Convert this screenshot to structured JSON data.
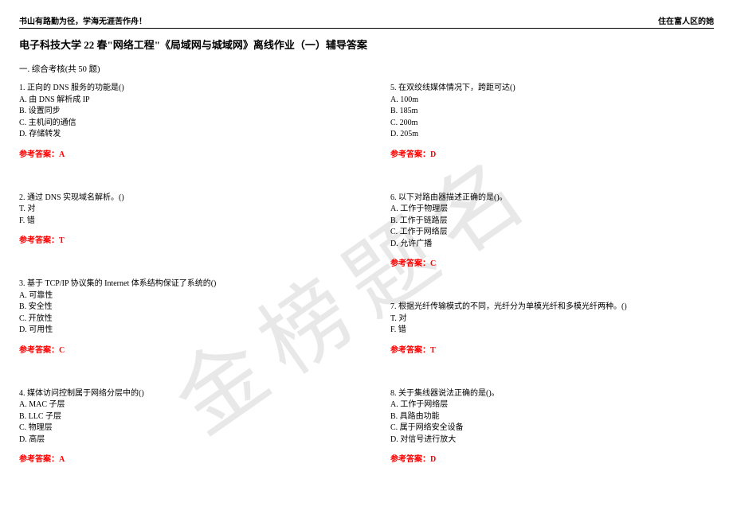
{
  "header": {
    "left": "书山有路勤为径，学海无涯苦作舟！",
    "right": "住在富人区的她"
  },
  "title": "电子科技大学 22 春\"网络工程\"《局域网与城域网》离线作业（一）辅导答案",
  "section": "一. 综合考核(共 50 题)",
  "watermark": "金榜题名",
  "answer_label": "参考答案：",
  "left_questions": [
    {
      "num": "1.",
      "text": "正向的 DNS 服务的功能是()",
      "options": [
        "A. 由 DNS 解析成 IP",
        "B. 设置同步",
        "C. 主机间的通信",
        "D. 存储转发"
      ],
      "answer": "A"
    },
    {
      "num": "2.",
      "text": "通过 DNS 实现域名解析。()",
      "options": [
        "T. 对",
        "F. 错"
      ],
      "answer": "T"
    },
    {
      "num": "3.",
      "text": "基于 TCP/IP 协议集的 Internet 体系结构保证了系统的()",
      "options": [
        "A. 可靠性",
        "B. 安全性",
        "C. 开放性",
        "D. 可用性"
      ],
      "answer": "C"
    },
    {
      "num": "4.",
      "text": "媒体访问控制属于网络分层中的()",
      "options": [
        "A. MAC 子层",
        "B. LLC 子层",
        "C. 物理层",
        "D. 高层"
      ],
      "answer": "A"
    }
  ],
  "right_questions": [
    {
      "num": "5.",
      "text": "在双绞线媒体情况下，跨距可达()",
      "options": [
        "A. 100m",
        "B. 185m",
        "C. 200m",
        "D. 205m"
      ],
      "answer": "D"
    },
    {
      "num": "6.",
      "text": "以下对路由器描述正确的是()。",
      "options": [
        "A. 工作于物理层",
        "B. 工作于链路层",
        "C. 工作于网络层",
        "D. 允许广播"
      ],
      "answer": "C"
    },
    {
      "num": "7.",
      "text": "根据光纤传输模式的不同，光纤分为单模光纤和多模光纤两种。()",
      "options": [
        "T. 对",
        "F. 错"
      ],
      "answer": "T"
    },
    {
      "num": "8.",
      "text": "关于集线器说法正确的是()。",
      "options": [
        "A. 工作于网络层",
        "B. 具路由功能",
        "C. 属于网络安全设备",
        "D. 对信号进行放大"
      ],
      "answer": "D"
    }
  ]
}
